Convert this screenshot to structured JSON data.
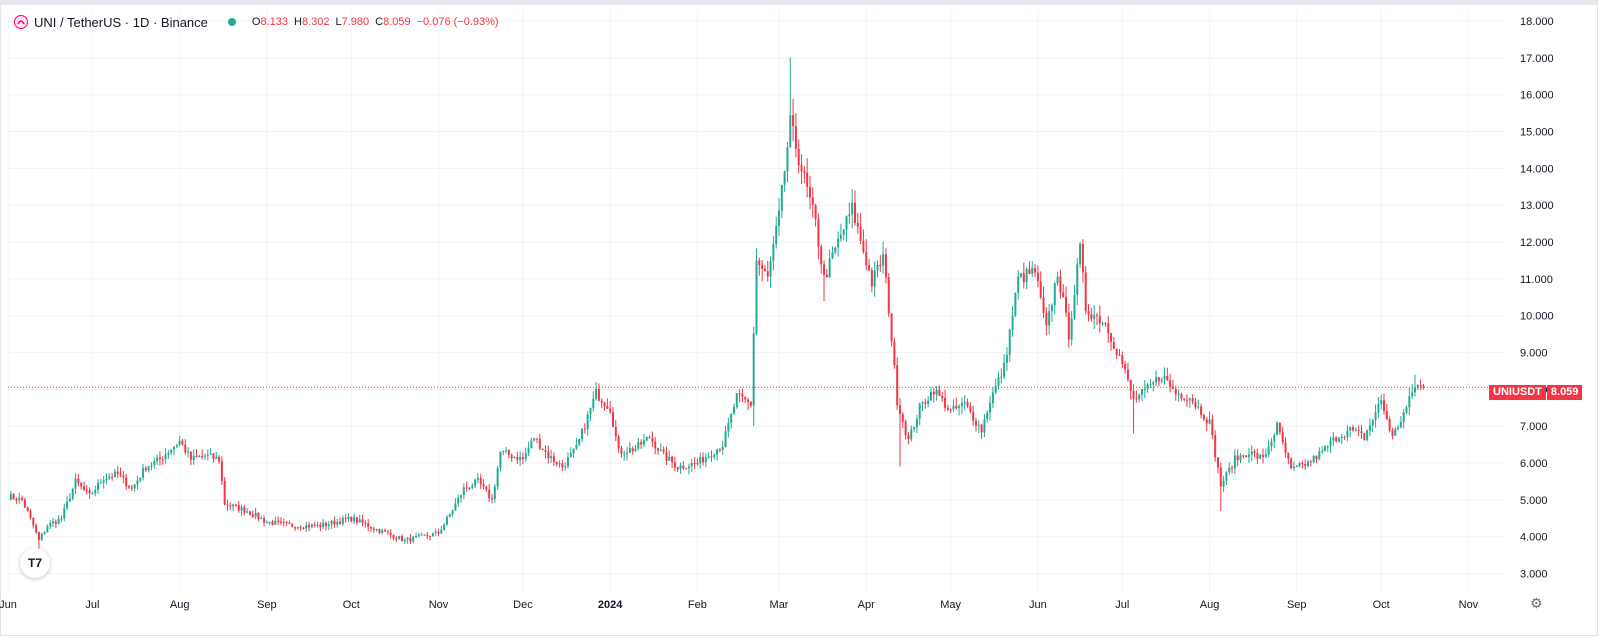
{
  "header": {
    "symbol_title": "UNI / TetherUS · 1D · Binance",
    "ohlc": [
      {
        "k": "O",
        "v": "8.133"
      },
      {
        "k": "H",
        "v": "8.302"
      },
      {
        "k": "L",
        "v": "7.980"
      },
      {
        "k": "C",
        "v": "8.059"
      },
      {
        "k": "",
        "v": "−0.076 (−0.93%)"
      }
    ]
  },
  "last_price": {
    "ticker": "UNIUSDT",
    "value": "8.059"
  },
  "colors": {
    "up": "#22ab94",
    "down": "#f23645",
    "grid": "#f0f3fa",
    "axis_text": "#131722",
    "last_line": "#f23645"
  },
  "chart_data": {
    "type": "candlestick",
    "title": "",
    "xlabel": "",
    "ylabel": "",
    "ylim": [
      2.5,
      18.3
    ],
    "y_ticks": [
      3,
      4,
      5,
      6,
      7,
      8,
      9,
      10,
      11,
      12,
      13,
      14,
      15,
      16,
      17,
      18
    ],
    "y_tick_labels": [
      "3.000",
      "4.000",
      "5.000",
      "6.000",
      "7.000",
      "8.000",
      "9.000",
      "10.000",
      "11.000",
      "12.000",
      "13.000",
      "14.000",
      "15.000",
      "16.000",
      "17.000",
      "18.000"
    ],
    "x_range": [
      "2023-06-01",
      "2024-11-14"
    ],
    "x_ticks": [
      {
        "date": "2023-06-01",
        "label": "Jun"
      },
      {
        "date": "2023-07-01",
        "label": "Jul"
      },
      {
        "date": "2023-08-01",
        "label": "Aug"
      },
      {
        "date": "2023-09-01",
        "label": "Sep"
      },
      {
        "date": "2023-10-01",
        "label": "Oct"
      },
      {
        "date": "2023-11-01",
        "label": "Nov"
      },
      {
        "date": "2023-12-01",
        "label": "Dec"
      },
      {
        "date": "2024-01-01",
        "label": "2024"
      },
      {
        "date": "2024-02-01",
        "label": "Feb"
      },
      {
        "date": "2024-03-01",
        "label": "Mar"
      },
      {
        "date": "2024-04-01",
        "label": "Apr"
      },
      {
        "date": "2024-05-01",
        "label": "May"
      },
      {
        "date": "2024-06-01",
        "label": "Jun"
      },
      {
        "date": "2024-07-01",
        "label": "Jul"
      },
      {
        "date": "2024-08-01",
        "label": "Aug"
      },
      {
        "date": "2024-09-01",
        "label": "Sep"
      },
      {
        "date": "2024-10-01",
        "label": "Oct"
      },
      {
        "date": "2024-11-01",
        "label": "Nov"
      }
    ],
    "grid": true,
    "last_value": 8.059,
    "close_path": [
      [
        "2023-06-01",
        5.1
      ],
      [
        "2023-06-06",
        5.0
      ],
      [
        "2023-06-10",
        4.3
      ],
      [
        "2023-06-12",
        3.9
      ],
      [
        "2023-06-15",
        4.3
      ],
      [
        "2023-06-20",
        4.5
      ],
      [
        "2023-06-25",
        5.5
      ],
      [
        "2023-06-30",
        5.1
      ],
      [
        "2023-07-05",
        5.6
      ],
      [
        "2023-07-10",
        5.7
      ],
      [
        "2023-07-15",
        5.3
      ],
      [
        "2023-07-20",
        5.9
      ],
      [
        "2023-07-25",
        6.1
      ],
      [
        "2023-07-29",
        6.4
      ],
      [
        "2023-08-01",
        6.6
      ],
      [
        "2023-08-05",
        6.1
      ],
      [
        "2023-08-10",
        6.2
      ],
      [
        "2023-08-15",
        6.1
      ],
      [
        "2023-08-17",
        4.9
      ],
      [
        "2023-08-25",
        4.7
      ],
      [
        "2023-09-01",
        4.4
      ],
      [
        "2023-09-10",
        4.3
      ],
      [
        "2023-09-20",
        4.3
      ],
      [
        "2023-10-01",
        4.5
      ],
      [
        "2023-10-10",
        4.2
      ],
      [
        "2023-10-20",
        3.9
      ],
      [
        "2023-11-01",
        4.1
      ],
      [
        "2023-11-05",
        4.6
      ],
      [
        "2023-11-10",
        5.3
      ],
      [
        "2023-11-15",
        5.5
      ],
      [
        "2023-11-20",
        5.0
      ],
      [
        "2023-11-23",
        6.3
      ],
      [
        "2023-12-01",
        6.1
      ],
      [
        "2023-12-05",
        6.7
      ],
      [
        "2023-12-10",
        6.2
      ],
      [
        "2023-12-15",
        5.9
      ],
      [
        "2023-12-20",
        6.4
      ],
      [
        "2023-12-27",
        7.9
      ],
      [
        "2024-01-01",
        7.5
      ],
      [
        "2024-01-04",
        6.3
      ],
      [
        "2024-01-10",
        6.4
      ],
      [
        "2024-01-15",
        6.7
      ],
      [
        "2024-01-20",
        6.2
      ],
      [
        "2024-01-25",
        5.9
      ],
      [
        "2024-02-01",
        6.0
      ],
      [
        "2024-02-10",
        6.5
      ],
      [
        "2024-02-15",
        7.8
      ],
      [
        "2024-02-20",
        7.6
      ],
      [
        "2024-02-22",
        11.5
      ],
      [
        "2024-02-26",
        11.0
      ],
      [
        "2024-03-01",
        12.7
      ],
      [
        "2024-03-05",
        15.2
      ],
      [
        "2024-03-08",
        14.3
      ],
      [
        "2024-03-14",
        12.5
      ],
      [
        "2024-03-17",
        11.0
      ],
      [
        "2024-03-22",
        12.0
      ],
      [
        "2024-03-27",
        12.9
      ],
      [
        "2024-04-01",
        11.5
      ],
      [
        "2024-04-03",
        10.9
      ],
      [
        "2024-04-07",
        11.6
      ],
      [
        "2024-04-09",
        10.2
      ],
      [
        "2024-04-12",
        7.7
      ],
      [
        "2024-04-16",
        6.6
      ],
      [
        "2024-04-20",
        7.5
      ],
      [
        "2024-04-25",
        8.0
      ],
      [
        "2024-05-01",
        7.4
      ],
      [
        "2024-05-06",
        7.6
      ],
      [
        "2024-05-12",
        6.9
      ],
      [
        "2024-05-15",
        7.7
      ],
      [
        "2024-05-20",
        8.6
      ],
      [
        "2024-05-25",
        11.0
      ],
      [
        "2024-05-31",
        11.2
      ],
      [
        "2024-06-04",
        9.6
      ],
      [
        "2024-06-08",
        11.2
      ],
      [
        "2024-06-12",
        9.5
      ],
      [
        "2024-06-16",
        11.8
      ],
      [
        "2024-06-18",
        10.2
      ],
      [
        "2024-06-25",
        9.8
      ],
      [
        "2024-07-01",
        8.7
      ],
      [
        "2024-07-05",
        7.7
      ],
      [
        "2024-07-10",
        8.0
      ],
      [
        "2024-07-15",
        8.4
      ],
      [
        "2024-07-20",
        7.9
      ],
      [
        "2024-07-25",
        7.8
      ],
      [
        "2024-08-01",
        7.1
      ],
      [
        "2024-08-05",
        5.4
      ],
      [
        "2024-08-10",
        6.1
      ],
      [
        "2024-08-15",
        6.3
      ],
      [
        "2024-08-20",
        6.1
      ],
      [
        "2024-08-25",
        7.0
      ],
      [
        "2024-08-30",
        5.8
      ],
      [
        "2024-09-05",
        6.0
      ],
      [
        "2024-09-10",
        6.3
      ],
      [
        "2024-09-15",
        6.7
      ],
      [
        "2024-09-20",
        6.9
      ],
      [
        "2024-09-25",
        6.7
      ],
      [
        "2024-10-01",
        7.7
      ],
      [
        "2024-10-05",
        6.7
      ],
      [
        "2024-10-10",
        7.5
      ],
      [
        "2024-10-13",
        8.1
      ],
      [
        "2024-10-16",
        8.06
      ]
    ],
    "spikes": [
      {
        "date": "2023-06-12",
        "low": 3.6
      },
      {
        "date": "2023-12-27",
        "high": 8.2
      },
      {
        "date": "2024-02-21",
        "low": 7.0
      },
      {
        "date": "2024-03-05",
        "high": 17.0
      },
      {
        "date": "2024-03-17",
        "low": 10.4
      },
      {
        "date": "2024-04-13",
        "low": 5.9
      },
      {
        "date": "2024-06-16",
        "high": 12.0
      },
      {
        "date": "2024-07-05",
        "low": 6.8
      },
      {
        "date": "2024-08-05",
        "low": 4.7
      },
      {
        "date": "2024-10-13",
        "high": 8.4
      }
    ]
  }
}
